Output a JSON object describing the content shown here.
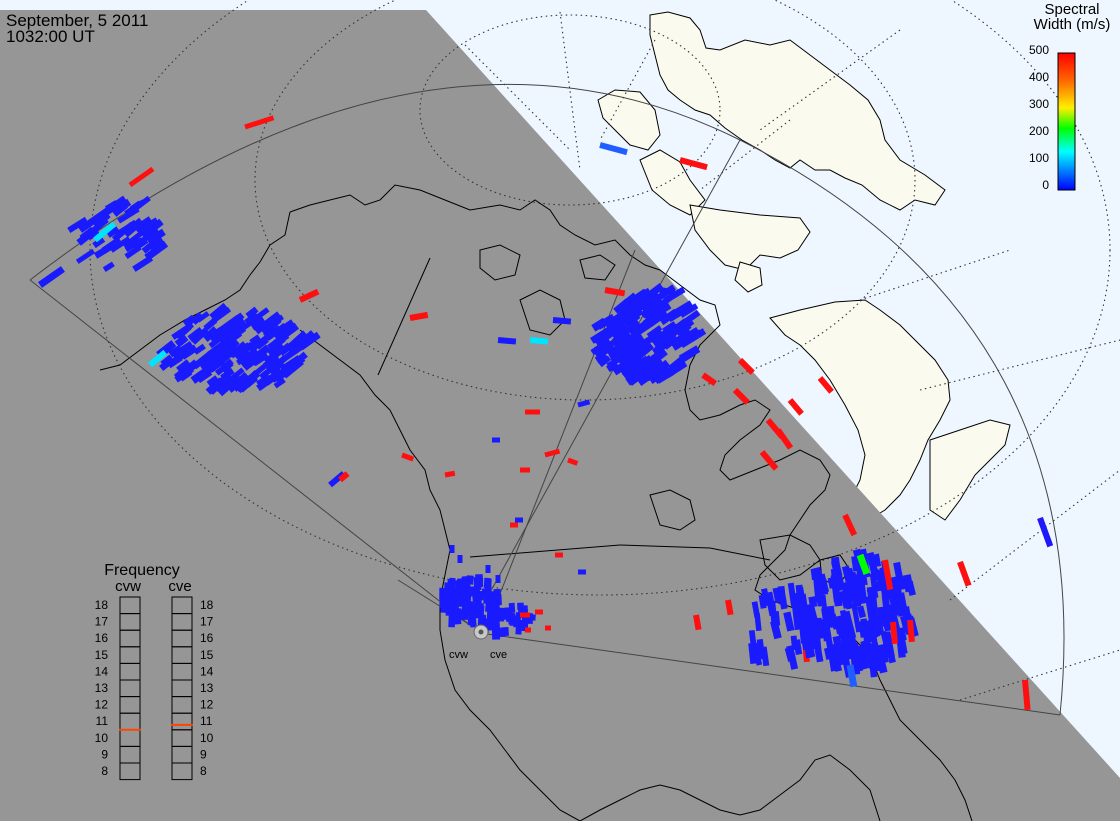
{
  "header": {
    "date": "September, 5 2011",
    "time": "1032:00 UT"
  },
  "colorbar": {
    "title_line1": "Spectral",
    "title_line2": "Width (m/s)",
    "ticks": [
      "500",
      "400",
      "300",
      "200",
      "100",
      "0"
    ],
    "colors": [
      "#ff0000",
      "#ffcc00",
      "#00ff00",
      "#00ffff",
      "#0000ff"
    ]
  },
  "radars": [
    {
      "code": "cvw",
      "label": "cvw"
    },
    {
      "code": "cve",
      "label": "cve"
    }
  ],
  "frequency_panel": {
    "title": "Frequency",
    "columns": [
      "cvw",
      "cve"
    ],
    "levels": [
      "18",
      "17",
      "16",
      "15",
      "14",
      "13",
      "12",
      "11",
      "10",
      "9",
      "8"
    ],
    "cvw_value": 10.5,
    "cve_value": 10.8,
    "marker_color": "#ff4400"
  },
  "map_colors": {
    "night": "#969696",
    "ocean_day": "#eef7ff",
    "land_day": "#fbfaee",
    "grid": "#333333"
  },
  "spectral_colors": {
    "low": "#1a1aff",
    "mid_low": "#00e5ff",
    "mid": "#00ff00",
    "high": "#ff1010",
    "blue2": "#1f5fff"
  }
}
